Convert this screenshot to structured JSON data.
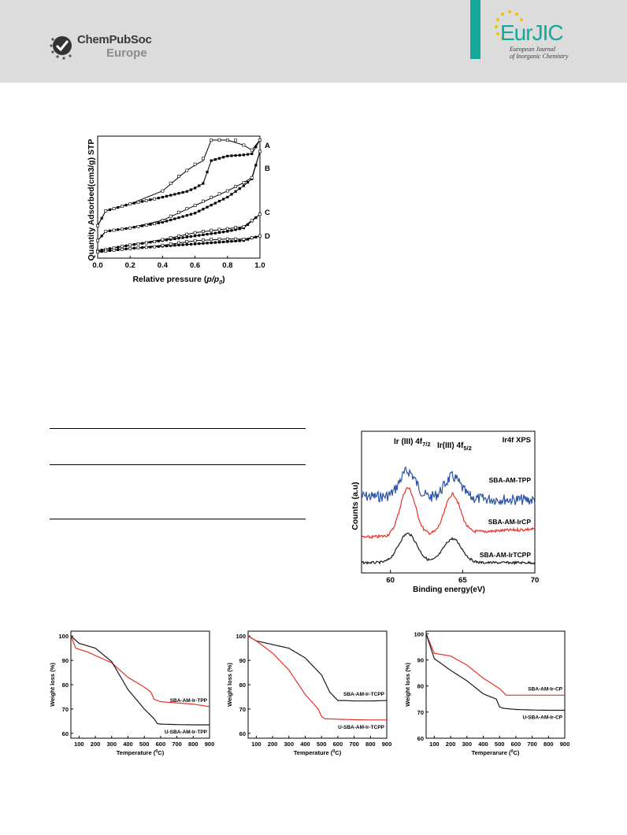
{
  "header": {
    "publisher_line1": "ChemPubSoc",
    "publisher_line2": "Europe",
    "journal_title": "EurJIC",
    "journal_sub1": "European Journal",
    "journal_sub2": "of Inorganic Chemistry",
    "brand_color": "#14a89a",
    "star_color": "#f2c200"
  },
  "figures": {
    "isotherm": {
      "type": "line",
      "ylabel": "Quantity Adsorbed(cm3/g) STP",
      "xlabel_prefix": "Relative pressure (",
      "xlabel_var": "p/p",
      "xlabel_sub": "0",
      "xlabel_suffix": ")",
      "xticks": [
        "0.0",
        "0.2",
        "0.4",
        "0.6",
        "0.8",
        "1.0"
      ],
      "series_labels": [
        "A",
        "B",
        "C",
        "D"
      ],
      "chart_data": {
        "type": "line",
        "xlim": [
          0,
          1
        ],
        "series": [
          {
            "name": "A",
            "x": [
              0.0,
              0.05,
              0.2,
              0.4,
              0.55,
              0.6,
              0.65,
              0.7,
              0.8,
              0.9,
              0.95,
              1.0
            ],
            "adsorption": [
              0.25,
              0.38,
              0.44,
              0.5,
              0.55,
              0.58,
              0.62,
              0.82,
              0.86,
              0.87,
              0.88,
              1.0
            ]
          },
          {
            "name": "B",
            "x": [
              0.0,
              0.05,
              0.2,
              0.4,
              0.6,
              0.8,
              0.9,
              0.95,
              1.0
            ],
            "adsorption": [
              0.12,
              0.2,
              0.23,
              0.28,
              0.36,
              0.5,
              0.6,
              0.66,
              0.9
            ]
          },
          {
            "name": "C",
            "x": [
              0.0,
              0.2,
              0.4,
              0.6,
              0.8,
              0.9,
              1.0
            ],
            "adsorption": [
              0.03,
              0.08,
              0.12,
              0.16,
              0.2,
              0.23,
              0.35
            ]
          },
          {
            "name": "D",
            "x": [
              0.0,
              0.2,
              0.4,
              0.6,
              0.8,
              0.9,
              1.0
            ],
            "adsorption": [
              0.02,
              0.05,
              0.07,
              0.09,
              0.11,
              0.12,
              0.16
            ]
          }
        ]
      }
    },
    "xps": {
      "title": "Ir4f XPS",
      "peak1_main": "Ir (III) 4f",
      "peak1_sub": "7/2",
      "peak2_main": "Ir(III) 4f",
      "peak2_sub": "5/2",
      "ylabel": "Counts (a.u)",
      "xlabel": "Binding energy(eV)",
      "xticks": [
        "60",
        "65",
        "70"
      ],
      "chart_data": {
        "type": "line",
        "xlim": [
          58,
          70
        ],
        "series": [
          {
            "name": "SBA-AM-TPP",
            "color": "#2c52a8"
          },
          {
            "name": "SBA-AM-IrCP",
            "color": "#e8302a"
          },
          {
            "name": "SBA-AM-IrTCPP",
            "color": "#1a1a1a"
          }
        ],
        "peaks_eV": [
          61.2,
          64.3
        ]
      }
    },
    "tga": [
      {
        "ylabel": "Weight loss (%)",
        "xlabel_main": "Temperature (",
        "xlabel_sup": "0",
        "xlabel_end": "C)",
        "yticks": [
          "100",
          "90",
          "80",
          "70",
          "60"
        ],
        "xticks": [
          "100",
          "200",
          "300",
          "400",
          "500",
          "600",
          "700",
          "800",
          "900"
        ],
        "chart_data": {
          "type": "line",
          "xlim": [
            50,
            900
          ],
          "ylim": [
            58,
            102
          ],
          "series": [
            {
              "name": "SBA-AM-Ir-TPP",
              "color": "#e8302a",
              "x": [
                50,
                80,
                150,
                300,
                400,
                500,
                540,
                560,
                600,
                700,
                800,
                900
              ],
              "y": [
                100,
                95,
                93.5,
                89,
                83,
                79,
                77,
                74,
                73,
                72.5,
                72,
                71
              ]
            },
            {
              "name": "U-SBA-AM-Ir-TPP",
              "color": "#1a1a1a",
              "x": [
                50,
                100,
                200,
                300,
                400,
                500,
                560,
                580,
                600,
                700,
                800,
                900
              ],
              "y": [
                100,
                97,
                95,
                89.5,
                78,
                70,
                66,
                64,
                63.8,
                63.6,
                63.5,
                63.5
              ]
            }
          ]
        }
      },
      {
        "ylabel": "Weight loss (%)",
        "xlabel_main": "Temperature (",
        "xlabel_sup": "0",
        "xlabel_end": "C)",
        "yticks": [
          "100",
          "90",
          "80",
          "70",
          "60"
        ],
        "xticks": [
          "100",
          "200",
          "300",
          "400",
          "500",
          "600",
          "700",
          "800",
          "900"
        ],
        "chart_data": {
          "type": "line",
          "xlim": [
            50,
            900
          ],
          "ylim": [
            58,
            102
          ],
          "series": [
            {
              "name": "SBA-AM-Ir-TCPP",
              "color": "#1a1a1a",
              "x": [
                50,
                100,
                200,
                300,
                400,
                500,
                550,
                600,
                650,
                700,
                800,
                900
              ],
              "y": [
                100,
                98,
                96.5,
                95,
                91,
                84,
                77,
                73.5,
                73.5,
                73.3,
                73.3,
                73.5
              ]
            },
            {
              "name": "U-SBA-AM-Ir-TCPP",
              "color": "#e8302a",
              "x": [
                50,
                100,
                200,
                300,
                400,
                480,
                500,
                520,
                600,
                700,
                800,
                900
              ],
              "y": [
                100,
                98,
                93,
                86,
                76,
                70,
                67,
                66,
                65.8,
                65.6,
                65.5,
                65.5
              ]
            }
          ]
        }
      },
      {
        "ylabel": "Weight loss (%)",
        "xlabel_main": "Temperarure (",
        "xlabel_sup": "0",
        "xlabel_end": "C)",
        "yticks": [
          "100",
          "90",
          "80",
          "70",
          "60"
        ],
        "xticks": [
          "100",
          "200",
          "300",
          "400",
          "500",
          "600",
          "700",
          "800",
          "900"
        ],
        "chart_data": {
          "type": "line",
          "xlim": [
            50,
            900
          ],
          "ylim": [
            60,
            101
          ],
          "series": [
            {
              "name": "SBA-AM-Ir-CP",
              "color": "#e8302a",
              "x": [
                50,
                100,
                200,
                300,
                400,
                500,
                540,
                560,
                600,
                700,
                800,
                900
              ],
              "y": [
                100,
                92.5,
                91.5,
                88,
                83,
                79,
                76.5,
                76.5,
                76.5,
                76.5,
                76.5,
                76.5
              ]
            },
            {
              "name": "U-SBA-AM-Ir-CP",
              "color": "#1a1a1a",
              "x": [
                50,
                100,
                200,
                300,
                400,
                480,
                500,
                520,
                600,
                700,
                800,
                900
              ],
              "y": [
                100,
                90.5,
                86,
                82,
                77,
                75,
                72,
                71.5,
                71,
                70.8,
                70.7,
                70.7
              ]
            }
          ]
        }
      }
    ]
  }
}
